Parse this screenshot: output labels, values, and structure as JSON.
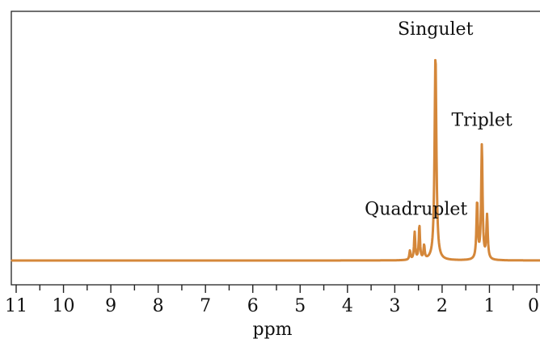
{
  "chart_data": {
    "type": "line",
    "title": "",
    "xlabel": "ppm",
    "ylabel": "",
    "x_reversed": true,
    "xlim": [
      0,
      11.2
    ],
    "ylim": [
      0,
      1
    ],
    "xticks": [
      11,
      10,
      9,
      8,
      7,
      6,
      5,
      4,
      3,
      2,
      1,
      0
    ],
    "tick_labels": [
      "11",
      "10",
      "9",
      "8",
      "7",
      "6",
      "5",
      "4",
      "3",
      "2",
      "1",
      "0"
    ],
    "minor_tick_step": 0.5,
    "line_color": "#D4873A",
    "series": [
      {
        "peaks": [
          {
            "x": 2.14,
            "height": 0.9,
            "width": 0.045
          },
          {
            "x": 1.26,
            "height": 0.25,
            "width": 0.035
          },
          {
            "x": 1.16,
            "height": 0.5,
            "width": 0.035
          },
          {
            "x": 1.05,
            "height": 0.19,
            "width": 0.035
          },
          {
            "x": 2.68,
            "height": 0.04,
            "width": 0.03
          },
          {
            "x": 2.58,
            "height": 0.12,
            "width": 0.03
          },
          {
            "x": 2.48,
            "height": 0.15,
            "width": 0.03
          },
          {
            "x": 2.38,
            "height": 0.06,
            "width": 0.03
          }
        ]
      }
    ],
    "annotations": [
      {
        "text": "Singulet",
        "x": 2.14,
        "y": 0.99
      },
      {
        "text": "Triplet",
        "x": 1.16,
        "y": 0.59
      },
      {
        "text": "Quadruplet",
        "x": 2.55,
        "y": 0.2
      }
    ]
  }
}
